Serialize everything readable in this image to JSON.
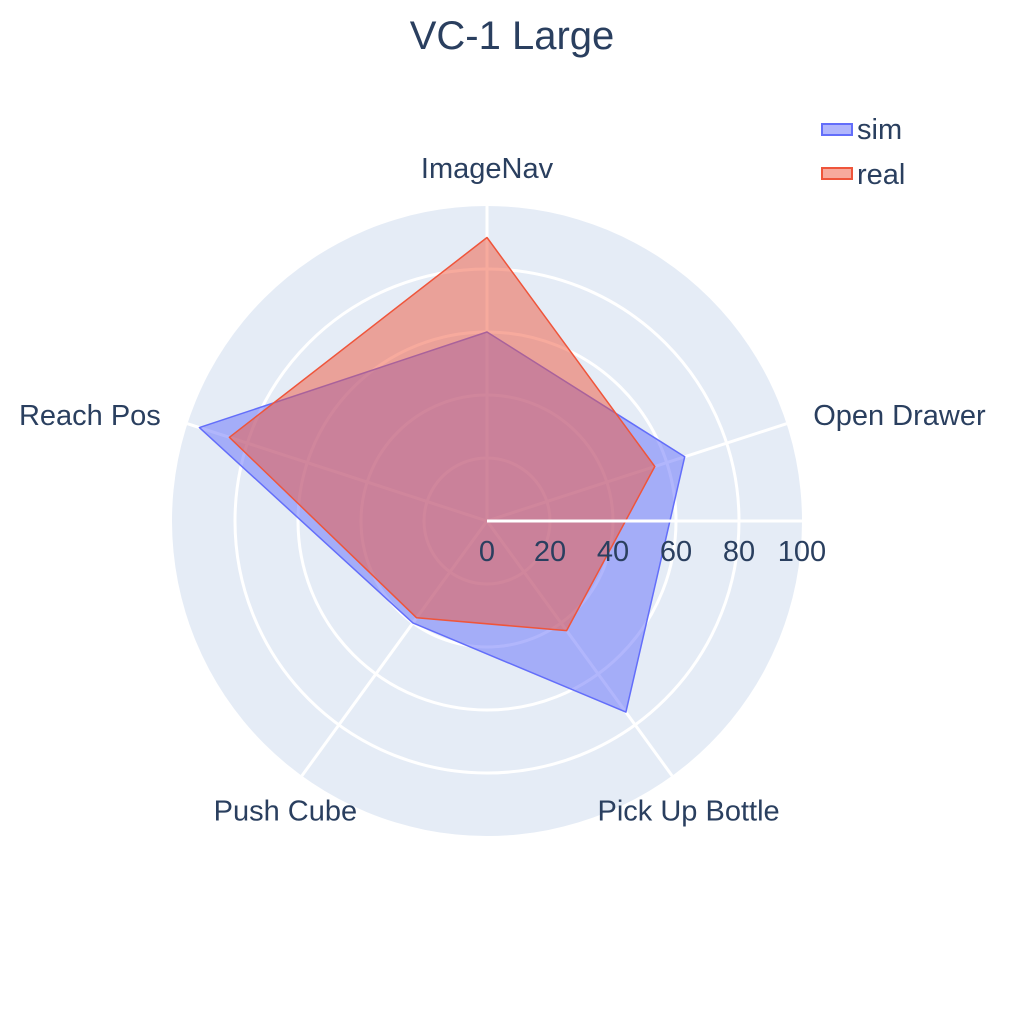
{
  "chart_data": {
    "type": "radar",
    "title": "VC-1 Large",
    "categories": [
      "ImageNav",
      "Open Drawer",
      "Pick Up Bottle",
      "Push Cube",
      "Reach Pos"
    ],
    "radial_range": [
      0,
      100
    ],
    "radial_ticks": [
      "0",
      "20",
      "40",
      "60",
      "80",
      "100"
    ],
    "series": [
      {
        "name": "sim",
        "values": [
          60,
          66,
          75,
          40,
          96
        ],
        "color": "#636efa"
      },
      {
        "name": "real",
        "values": [
          90,
          56,
          43,
          38,
          86
        ],
        "color": "#ef553b"
      }
    ],
    "legend": {
      "position": "top-right"
    },
    "grid": true
  }
}
